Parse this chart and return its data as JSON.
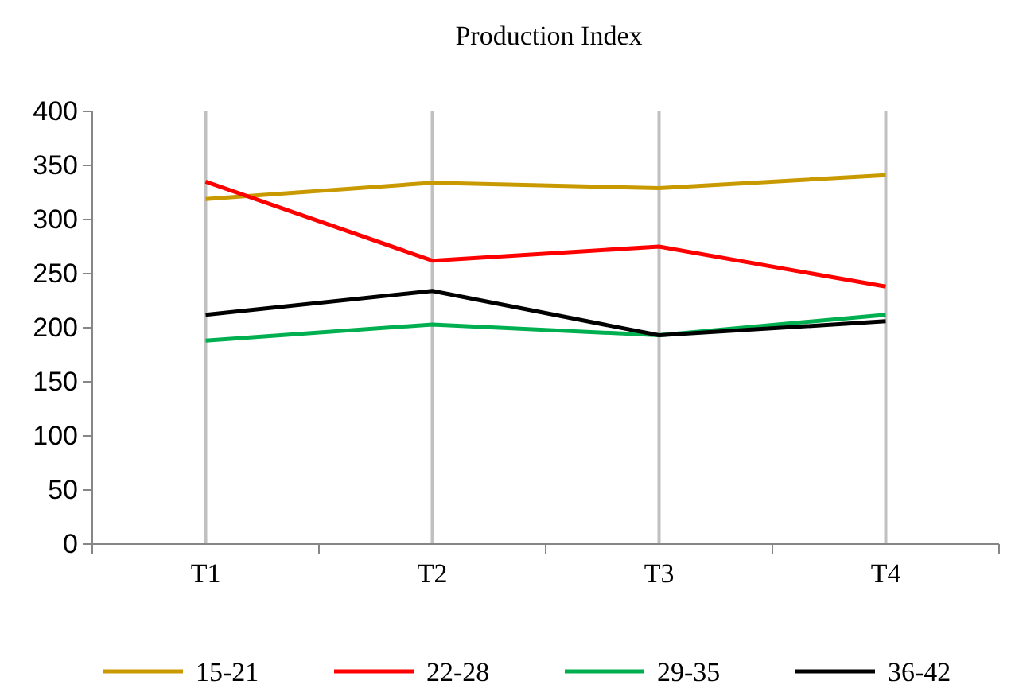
{
  "chart_data": {
    "type": "line",
    "title": "Production Index",
    "categories": [
      "T1",
      "T2",
      "T3",
      "T4"
    ],
    "series": [
      {
        "name": "15-21",
        "color": "#c89a00",
        "values": [
          319,
          334,
          329,
          341
        ]
      },
      {
        "name": "22-28",
        "color": "#ff0000",
        "values": [
          335,
          262,
          275,
          238
        ]
      },
      {
        "name": "29-35",
        "color": "#00b050",
        "values": [
          188,
          203,
          193,
          212
        ]
      },
      {
        "name": "36-42",
        "color": "#000000",
        "values": [
          212,
          234,
          193,
          206
        ]
      }
    ],
    "ylim": [
      0,
      400
    ],
    "yticks": [
      0,
      50,
      100,
      150,
      200,
      250,
      300,
      350,
      400
    ],
    "grid": "x",
    "legend": "bottom",
    "marker": "none",
    "line_style": "solid"
  }
}
